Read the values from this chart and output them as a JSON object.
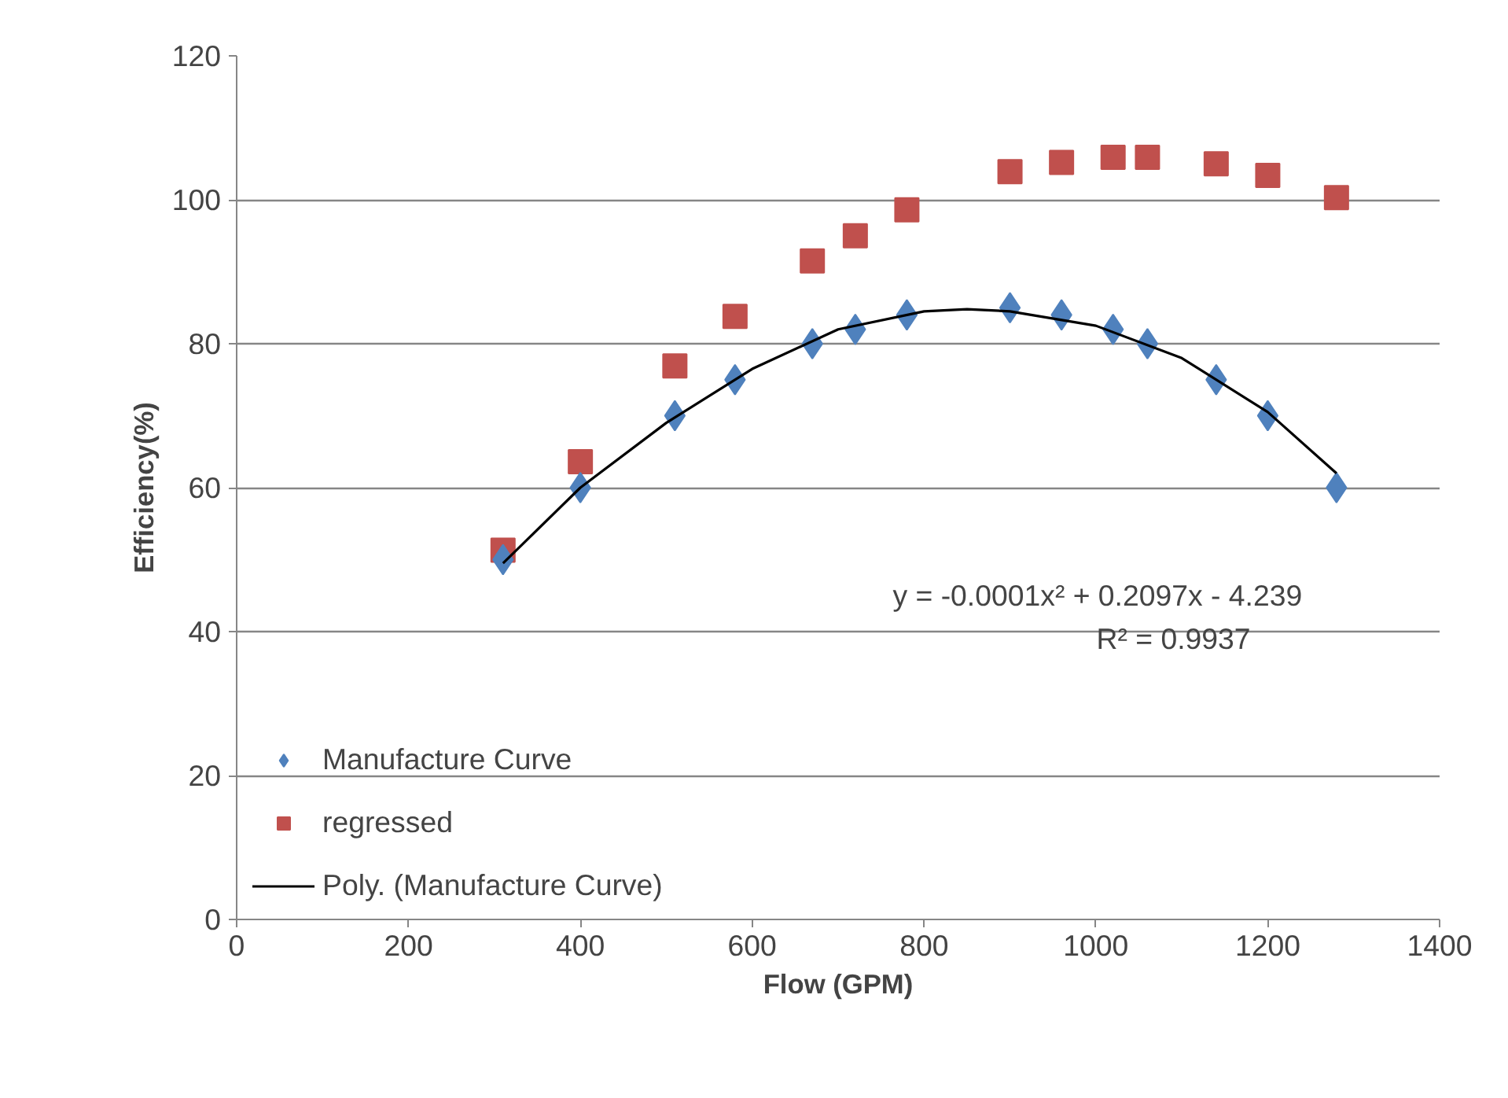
{
  "chart_data": {
    "type": "scatter",
    "xlabel": "Flow (GPM)",
    "ylabel": "Efficiency(%)",
    "xlim": [
      0,
      1400
    ],
    "xticks": [
      0,
      200,
      400,
      600,
      800,
      1000,
      1200,
      1400
    ],
    "ylim": [
      0,
      120
    ],
    "yticks": [
      0,
      20,
      40,
      60,
      80,
      100,
      120
    ],
    "grid": "y",
    "legend": "bottom left",
    "series": [
      {
        "name": "Manufacture Curve",
        "color": "#4f81bd",
        "marker": "diamond",
        "x": [
          310,
          400,
          510,
          580,
          670,
          720,
          780,
          900,
          960,
          1020,
          1060,
          1140,
          1200,
          1280
        ],
        "values": [
          50,
          60,
          70,
          75,
          80,
          82,
          84,
          85,
          84,
          82,
          80,
          75,
          70,
          60
        ]
      },
      {
        "name": "regressed",
        "color": "#c0504d",
        "marker": "square",
        "x": [
          310,
          400,
          510,
          580,
          670,
          720,
          780,
          900,
          960,
          1020,
          1060,
          1140,
          1200,
          1280
        ],
        "values": [
          51.3,
          63.6,
          76.9,
          83.8,
          91.5,
          95,
          98.6,
          103.9,
          105.2,
          105.9,
          105.9,
          105,
          103.4,
          100.3
        ]
      },
      {
        "name": "Poly. (Manufacture Curve)",
        "type": "line",
        "color": "#000000",
        "line_style": "solid",
        "marker": "none",
        "x": [
          310,
          400,
          500,
          600,
          700,
          800,
          850,
          900,
          1000,
          1100,
          1200,
          1280
        ],
        "values": [
          49.5,
          60,
          69,
          76.5,
          82,
          84.5,
          84.8,
          84.5,
          82.5,
          78,
          70.5,
          62
        ]
      }
    ],
    "annotations": [
      "y = -0.0001x² + 0.2097x - 4.239",
      "R² = 0.9937"
    ]
  }
}
